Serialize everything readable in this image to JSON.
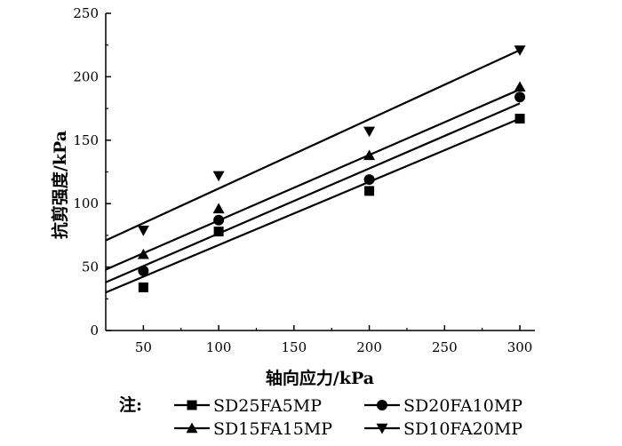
{
  "chart_data": {
    "type": "scatter",
    "xlabel": "轴向应力/kPa",
    "ylabel": "抗剪强度/kPa",
    "xlim": [
      25,
      310
    ],
    "ylim": [
      0,
      250
    ],
    "xticks": [
      50,
      100,
      150,
      200,
      250,
      300
    ],
    "yticks": [
      0,
      50,
      100,
      150,
      200,
      250
    ],
    "grid": false,
    "legend_note": "注:",
    "legend_position": "bottom",
    "series": [
      {
        "name": "SD25FA5MP",
        "marker": "square",
        "x": [
          50,
          100,
          200,
          300
        ],
        "y": [
          34,
          78,
          110,
          167
        ],
        "fit": {
          "x": [
            25,
            300
          ],
          "y": [
            30,
            167
          ]
        }
      },
      {
        "name": "SD20FA10MP",
        "marker": "circle",
        "x": [
          50,
          100,
          200,
          300
        ],
        "y": [
          47,
          87,
          119,
          184
        ],
        "fit": {
          "x": [
            25,
            300
          ],
          "y": [
            38,
            179
          ]
        }
      },
      {
        "name": "SD15FA15MP",
        "marker": "triangle-up",
        "x": [
          50,
          100,
          200,
          300
        ],
        "y": [
          60,
          96,
          138,
          192
        ],
        "fit": {
          "x": [
            25,
            300
          ],
          "y": [
            48,
            190
          ]
        }
      },
      {
        "name": "SD10FA20MP",
        "marker": "triangle-down",
        "x": [
          50,
          100,
          200,
          300
        ],
        "y": [
          79,
          122,
          157,
          221
        ],
        "fit": {
          "x": [
            25,
            300
          ],
          "y": [
            71,
            221
          ]
        }
      }
    ]
  }
}
